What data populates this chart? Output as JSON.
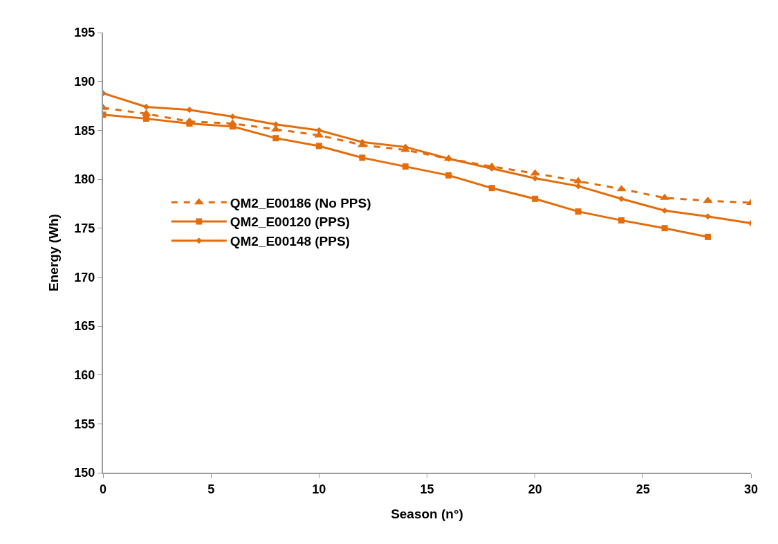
{
  "chart_data": {
    "type": "line",
    "xlabel": "Season (n°)",
    "ylabel": "Energy (Wh)",
    "x": [
      0,
      2,
      4,
      6,
      8,
      10,
      12,
      14,
      16,
      18,
      20,
      22,
      24,
      26,
      28,
      30
    ],
    "series": [
      {
        "name": "QM2_E00186 (No PPS)",
        "color": "#e46c0a",
        "line_style": "dashed",
        "marker": "triangle",
        "values": [
          187.3,
          186.7,
          185.9,
          185.7,
          185.1,
          184.5,
          183.5,
          183.0,
          182.1,
          181.3,
          180.6,
          179.8,
          179.0,
          178.1,
          177.8,
          177.6
        ]
      },
      {
        "name": "QM2_E00120 (PPS)",
        "color": "#e46c0a",
        "line_style": "solid",
        "marker": "square",
        "values": [
          186.6,
          186.2,
          185.7,
          185.4,
          184.2,
          183.4,
          182.2,
          181.3,
          180.4,
          179.1,
          178.0,
          176.7,
          175.8,
          175.0,
          174.1,
          null
        ]
      },
      {
        "name": "QM2_E00148 (PPS)",
        "color": "#e46c0a",
        "line_style": "solid",
        "marker": "diamond",
        "values": [
          188.8,
          187.4,
          187.1,
          186.4,
          185.6,
          185.0,
          183.8,
          183.3,
          182.1,
          181.1,
          180.1,
          179.3,
          178.0,
          176.8,
          176.2,
          175.5
        ]
      }
    ],
    "xlim": [
      0,
      30
    ],
    "xticks": [
      0,
      5,
      10,
      15,
      20,
      25,
      30
    ],
    "ylim": [
      150,
      195
    ],
    "yticks": [
      150,
      155,
      160,
      165,
      170,
      175,
      180,
      185,
      190,
      195
    ],
    "grid": false,
    "legend": "left"
  }
}
